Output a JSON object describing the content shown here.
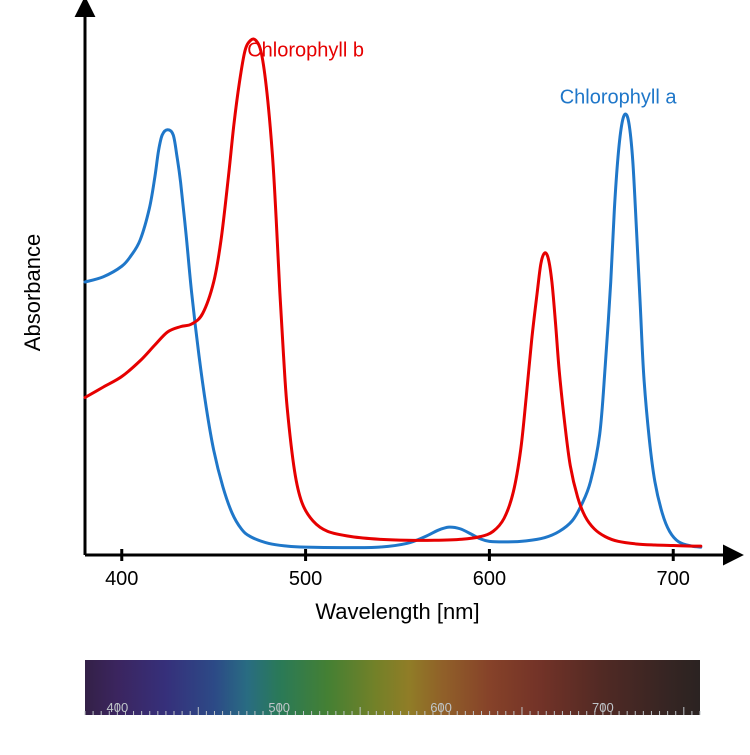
{
  "chart": {
    "type": "line",
    "xlabel": "Wavelength [nm]",
    "ylabel": "Absorbance",
    "label_fontsize": 22,
    "tick_fontsize": 20,
    "xlim": [
      380,
      720
    ],
    "ylim": [
      0,
      1.0
    ],
    "xticks": [
      400,
      500,
      600,
      700
    ],
    "background_color": "#ffffff",
    "axis_color": "#000000",
    "axis_width": 3,
    "line_width": 3,
    "series": {
      "chlorophyll_a": {
        "label": "Chlorophyll a",
        "color": "#1f77c9",
        "label_x": 670,
        "label_y": 0.86,
        "points": [
          [
            380,
            0.52
          ],
          [
            390,
            0.53
          ],
          [
            400,
            0.55
          ],
          [
            405,
            0.57
          ],
          [
            410,
            0.6
          ],
          [
            415,
            0.66
          ],
          [
            418,
            0.72
          ],
          [
            420,
            0.77
          ],
          [
            422,
            0.8
          ],
          [
            425,
            0.81
          ],
          [
            428,
            0.8
          ],
          [
            430,
            0.76
          ],
          [
            432,
            0.71
          ],
          [
            435,
            0.61
          ],
          [
            438,
            0.5
          ],
          [
            442,
            0.38
          ],
          [
            446,
            0.28
          ],
          [
            450,
            0.2
          ],
          [
            455,
            0.13
          ],
          [
            460,
            0.08
          ],
          [
            465,
            0.05
          ],
          [
            470,
            0.035
          ],
          [
            480,
            0.022
          ],
          [
            490,
            0.017
          ],
          [
            500,
            0.015
          ],
          [
            520,
            0.014
          ],
          [
            540,
            0.015
          ],
          [
            555,
            0.022
          ],
          [
            565,
            0.035
          ],
          [
            572,
            0.047
          ],
          [
            578,
            0.053
          ],
          [
            584,
            0.05
          ],
          [
            590,
            0.04
          ],
          [
            595,
            0.031
          ],
          [
            600,
            0.026
          ],
          [
            610,
            0.025
          ],
          [
            620,
            0.027
          ],
          [
            630,
            0.033
          ],
          [
            638,
            0.045
          ],
          [
            645,
            0.065
          ],
          [
            650,
            0.095
          ],
          [
            655,
            0.14
          ],
          [
            660,
            0.23
          ],
          [
            663,
            0.36
          ],
          [
            666,
            0.52
          ],
          [
            668,
            0.66
          ],
          [
            670,
            0.76
          ],
          [
            672,
            0.82
          ],
          [
            674,
            0.84
          ],
          [
            676,
            0.82
          ],
          [
            678,
            0.75
          ],
          [
            680,
            0.62
          ],
          [
            682,
            0.48
          ],
          [
            684,
            0.34
          ],
          [
            687,
            0.22
          ],
          [
            690,
            0.14
          ],
          [
            694,
            0.08
          ],
          [
            698,
            0.045
          ],
          [
            703,
            0.025
          ],
          [
            710,
            0.017
          ],
          [
            715,
            0.015
          ]
        ]
      },
      "chlorophyll_b": {
        "label": "Chlorophyll b",
        "color": "#e60000",
        "label_x": 500,
        "label_y": 0.95,
        "points": [
          [
            380,
            0.3
          ],
          [
            390,
            0.32
          ],
          [
            400,
            0.34
          ],
          [
            410,
            0.37
          ],
          [
            418,
            0.4
          ],
          [
            425,
            0.425
          ],
          [
            432,
            0.435
          ],
          [
            438,
            0.44
          ],
          [
            444,
            0.46
          ],
          [
            450,
            0.52
          ],
          [
            454,
            0.6
          ],
          [
            458,
            0.72
          ],
          [
            461,
            0.82
          ],
          [
            464,
            0.9
          ],
          [
            467,
            0.96
          ],
          [
            470,
            0.98
          ],
          [
            473,
            0.98
          ],
          [
            476,
            0.955
          ],
          [
            479,
            0.88
          ],
          [
            482,
            0.76
          ],
          [
            484,
            0.64
          ],
          [
            486,
            0.5
          ],
          [
            488,
            0.38
          ],
          [
            490,
            0.28
          ],
          [
            494,
            0.16
          ],
          [
            498,
            0.1
          ],
          [
            504,
            0.065
          ],
          [
            512,
            0.045
          ],
          [
            525,
            0.035
          ],
          [
            540,
            0.03
          ],
          [
            555,
            0.028
          ],
          [
            570,
            0.028
          ],
          [
            585,
            0.03
          ],
          [
            595,
            0.035
          ],
          [
            602,
            0.045
          ],
          [
            608,
            0.07
          ],
          [
            613,
            0.12
          ],
          [
            617,
            0.2
          ],
          [
            620,
            0.3
          ],
          [
            623,
            0.41
          ],
          [
            626,
            0.5
          ],
          [
            628,
            0.555
          ],
          [
            630,
            0.575
          ],
          [
            632,
            0.565
          ],
          [
            634,
            0.52
          ],
          [
            636,
            0.44
          ],
          [
            638,
            0.35
          ],
          [
            641,
            0.25
          ],
          [
            644,
            0.17
          ],
          [
            648,
            0.11
          ],
          [
            652,
            0.074
          ],
          [
            657,
            0.05
          ],
          [
            663,
            0.035
          ],
          [
            670,
            0.026
          ],
          [
            680,
            0.021
          ],
          [
            690,
            0.019
          ],
          [
            700,
            0.018
          ],
          [
            710,
            0.017
          ],
          [
            715,
            0.017
          ]
        ]
      }
    }
  },
  "spectrum": {
    "min_nm": 380,
    "max_nm": 760,
    "tick_major": [
      400,
      500,
      600,
      700
    ],
    "tick_fontsize": 13,
    "tick_color": "#bfc5c9",
    "dim_overlay": "#3c3c3c",
    "dim_opacity": 0.55,
    "stops": [
      {
        "nm": 380,
        "color": "#2a0055"
      },
      {
        "nm": 400,
        "color": "#3b0a8a"
      },
      {
        "nm": 430,
        "color": "#2f22c7"
      },
      {
        "nm": 460,
        "color": "#1a5be0"
      },
      {
        "nm": 480,
        "color": "#12a6d8"
      },
      {
        "nm": 500,
        "color": "#14c47a"
      },
      {
        "nm": 530,
        "color": "#4fd22a"
      },
      {
        "nm": 560,
        "color": "#b7d411"
      },
      {
        "nm": 580,
        "color": "#f6cc0e"
      },
      {
        "nm": 600,
        "color": "#f78f12"
      },
      {
        "nm": 630,
        "color": "#e04a12"
      },
      {
        "nm": 660,
        "color": "#b72910"
      },
      {
        "nm": 700,
        "color": "#6a1408"
      },
      {
        "nm": 740,
        "color": "#2f0a05"
      },
      {
        "nm": 760,
        "color": "#170503"
      }
    ]
  }
}
